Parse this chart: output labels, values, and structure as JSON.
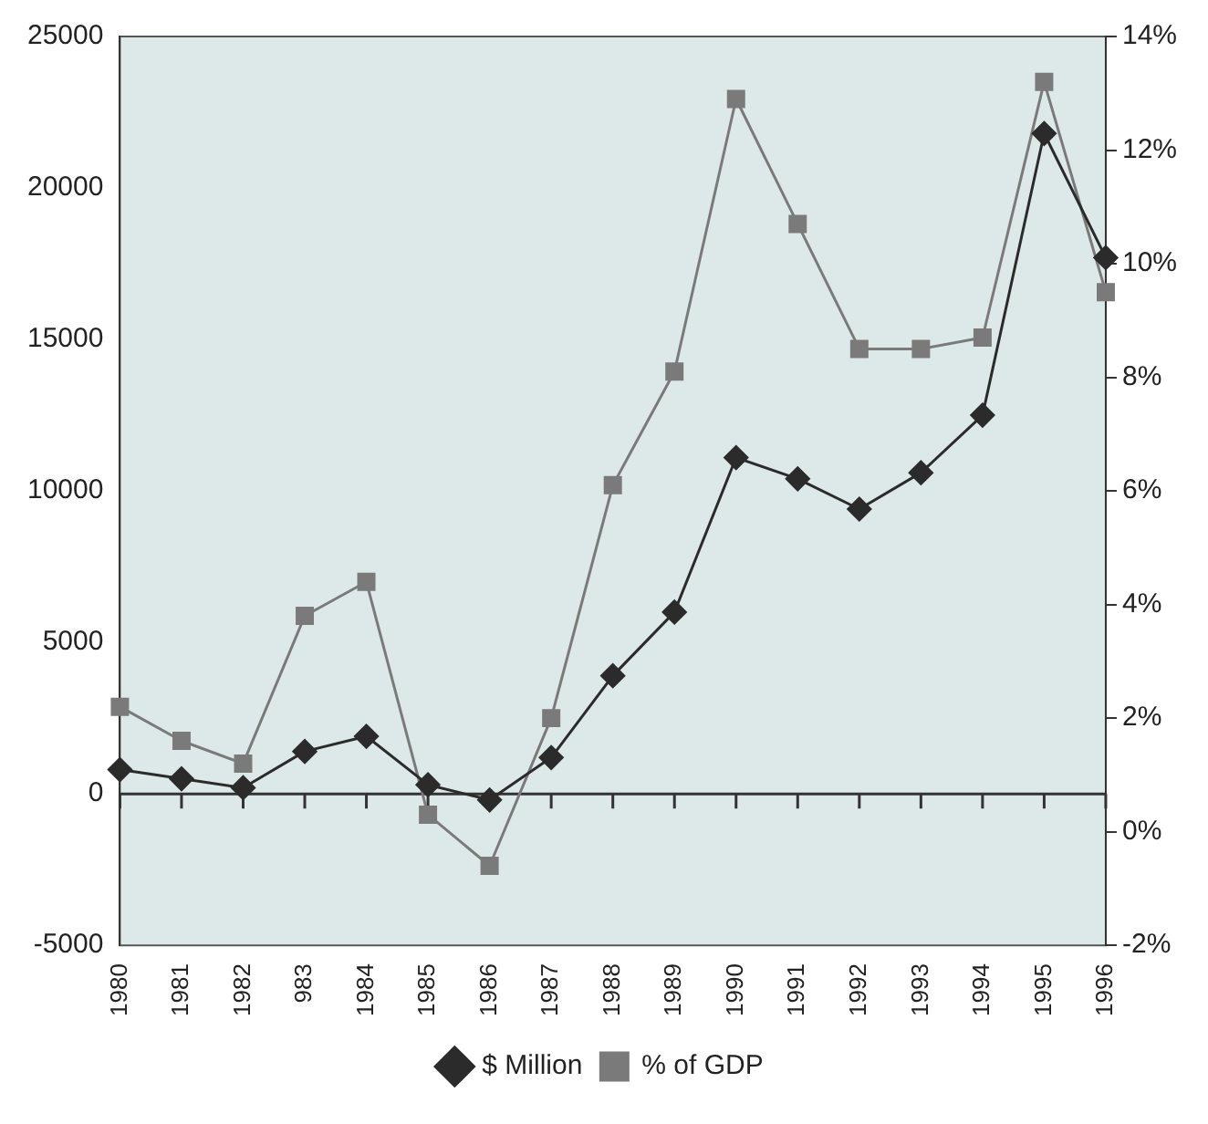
{
  "chart_data": {
    "type": "line",
    "categories": [
      "1980",
      "1981",
      "1982",
      "983",
      "1984",
      "1985",
      "1986",
      "1987",
      "1988",
      "1989",
      "1990",
      "1991",
      "1992",
      "1993",
      "1994",
      "1995",
      "1996"
    ],
    "series": [
      {
        "name": "$ Million",
        "color": "#2b2b2b",
        "marker": "diamond",
        "values": [
          800,
          500,
          200,
          1400,
          1900,
          300,
          -200,
          1200,
          3900,
          6000,
          11100,
          10400,
          9400,
          10600,
          12500,
          21800,
          17700
        ]
      },
      {
        "name": "% of GDP",
        "color": "#7a7a7a",
        "marker": "square",
        "axis": "y2",
        "values": [
          2.2,
          1.6,
          1.2,
          3.8,
          4.4,
          0.3,
          -0.6,
          2.0,
          6.1,
          8.1,
          12.9,
          10.7,
          8.5,
          8.5,
          8.7,
          13.2,
          9.5
        ]
      }
    ],
    "ylim": [
      -5000,
      25000
    ],
    "yticks": [
      -5000,
      0,
      5000,
      10000,
      15000,
      20000,
      25000
    ],
    "y2lim": [
      -2,
      14
    ],
    "y2ticks": [
      {
        "value": -2,
        "label": "-2%"
      },
      {
        "value": 0,
        "label": "0%"
      },
      {
        "value": 2,
        "label": "2%"
      },
      {
        "value": 4,
        "label": "4%"
      },
      {
        "value": 6,
        "label": "6%"
      },
      {
        "value": 8,
        "label": "8%"
      },
      {
        "value": 10,
        "label": "10%"
      },
      {
        "value": 12,
        "label": "12%"
      },
      {
        "value": 14,
        "label": "14%"
      }
    ],
    "ref_lines": [
      {
        "axis": "y",
        "value": 0,
        "color": "#333333"
      }
    ],
    "grid": false,
    "legend": "bottom",
    "line_style": "solid"
  }
}
